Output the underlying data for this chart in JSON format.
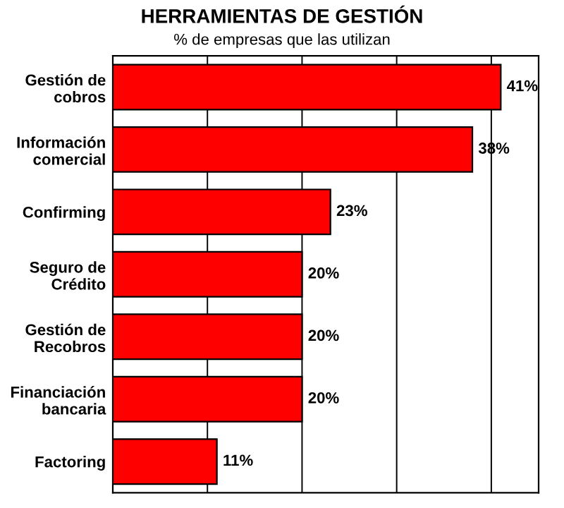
{
  "chart_data": {
    "type": "bar",
    "orientation": "horizontal",
    "title": "HERRAMIENTAS DE GESTIÓN",
    "subtitle": "% de empresas que las utilizan",
    "categories": [
      "Gestión de\ncobros",
      "Información\ncomercial",
      "Confirming",
      "Seguro de\nCrédito",
      "Gestión de\nRecobros",
      "Financiación\nbancaria",
      "Factoring"
    ],
    "values": [
      41,
      38,
      23,
      20,
      20,
      20,
      11
    ],
    "value_labels": [
      "41%",
      "38%",
      "23%",
      "20%",
      "20%",
      "20%",
      "11%"
    ],
    "color": "#ff0000",
    "xlim": [
      0,
      45
    ],
    "xticks": [
      {
        "value": 0,
        "label": null
      },
      {
        "value": 10,
        "label": null
      },
      {
        "value": 20,
        "label": null
      },
      {
        "value": 30,
        "label": null
      },
      {
        "value": 40,
        "label": null
      }
    ],
    "grid": "x",
    "tick_labels": "y",
    "legend": false
  }
}
